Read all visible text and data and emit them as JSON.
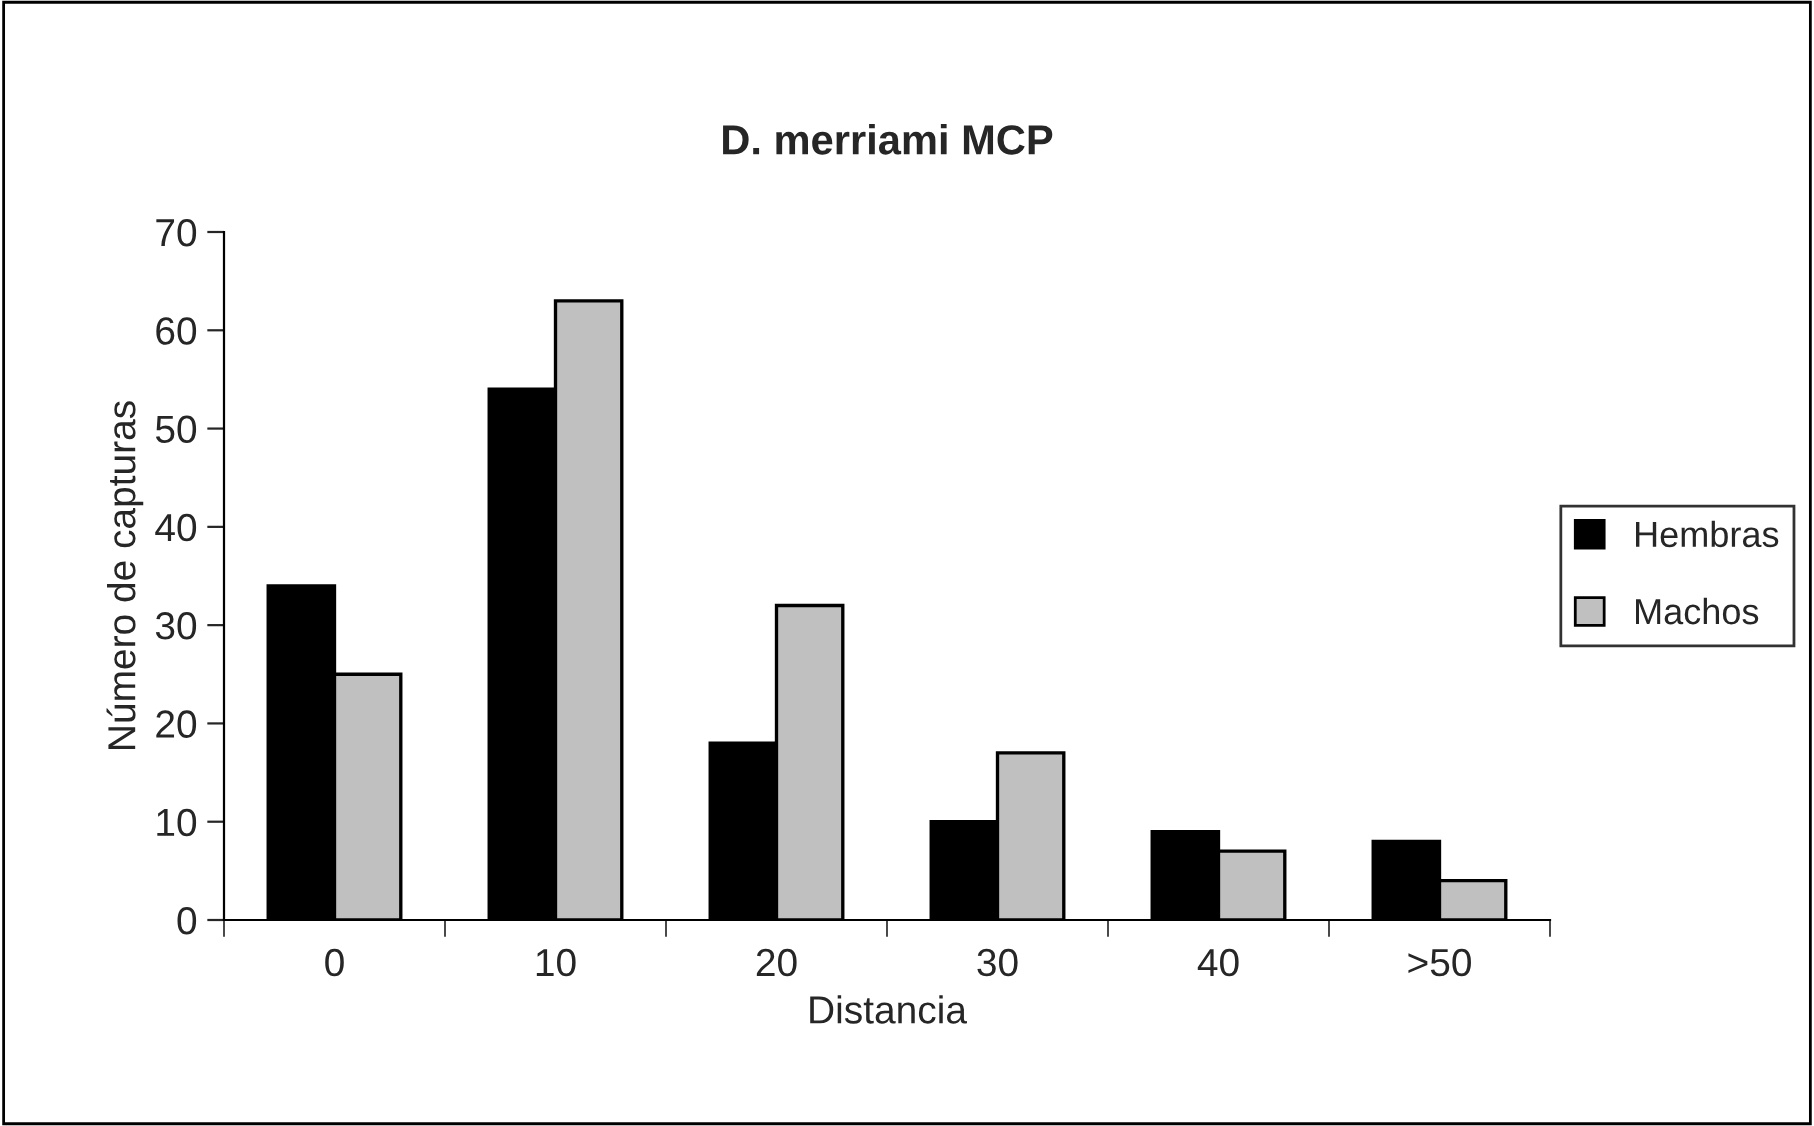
{
  "chart_data": {
    "type": "bar",
    "title": "D. merriami MCP",
    "xlabel": "Distancia",
    "ylabel": "Número de capturas",
    "categories": [
      "0",
      "10",
      "20",
      "30",
      "40",
      ">50"
    ],
    "series": [
      {
        "name": "Hembras",
        "color": "#000000",
        "values": [
          34,
          54,
          18,
          10,
          9,
          8
        ]
      },
      {
        "name": "Machos",
        "color": "#c0c0c0",
        "values": [
          25,
          63,
          32,
          17,
          7,
          4
        ]
      }
    ],
    "ylim": [
      0,
      70
    ],
    "yticks": [
      0,
      10,
      20,
      30,
      40,
      50,
      60,
      70
    ],
    "grid": false,
    "legend": "right"
  }
}
